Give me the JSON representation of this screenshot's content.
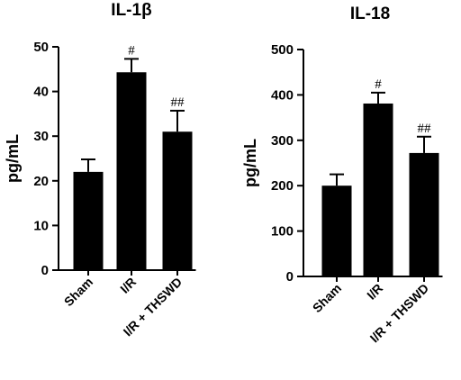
{
  "chart_data": [
    {
      "type": "bar",
      "title": "IL-1β",
      "ylabel": "pg/mL",
      "xlabel": "",
      "categories": [
        "Sham",
        "I/R",
        "I/R + THSWD"
      ],
      "values": [
        22,
        44.3,
        31
      ],
      "error": [
        2.8,
        3.0,
        4.7
      ],
      "annotations": [
        "",
        "#",
        "##"
      ],
      "ylim": [
        0,
        50
      ],
      "yticks": [
        "0",
        "10",
        "20",
        "30",
        "40",
        "50"
      ],
      "grid": false,
      "legend": "none"
    },
    {
      "type": "bar",
      "title": "IL-18",
      "ylabel": "pg/mL",
      "xlabel": "",
      "categories": [
        "Sham",
        "I/R",
        "I/R + THSWD"
      ],
      "values": [
        200,
        381,
        272
      ],
      "error": [
        25,
        24,
        36
      ],
      "annotations": [
        "",
        "#",
        "##"
      ],
      "ylim": [
        0,
        500
      ],
      "yticks": [
        "0",
        "100",
        "200",
        "300",
        "400",
        "500"
      ],
      "grid": false,
      "legend": "none"
    }
  ],
  "colors": {
    "bar": "#000000",
    "axis": "#000000"
  }
}
